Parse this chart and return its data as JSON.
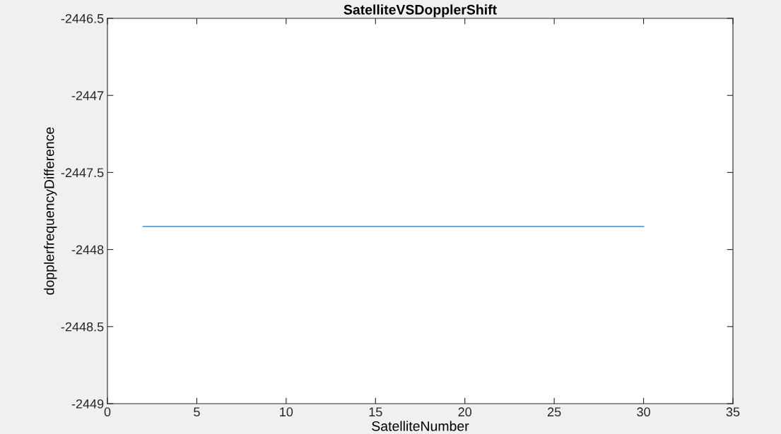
{
  "chart_data": {
    "type": "line",
    "title": "SatelliteVSDopplerShift",
    "xlabel": "SatelliteNumber",
    "ylabel": "dopplerfrequencyDifference",
    "x": [
      2,
      30
    ],
    "series": [
      {
        "color": "#4da3dc",
        "values": [
          -2447.85,
          -2447.85
        ]
      }
    ],
    "xlim": [
      0,
      35
    ],
    "xticks": [
      0,
      5,
      10,
      15,
      20,
      25,
      30,
      35
    ],
    "ylim": [
      -2449,
      -2446.5
    ],
    "yticks": [
      -2449,
      -2448.5,
      -2448,
      -2447.5,
      -2447,
      -2446.5
    ],
    "grid": false,
    "legend": false,
    "marker": "none",
    "line_style": "solid"
  }
}
